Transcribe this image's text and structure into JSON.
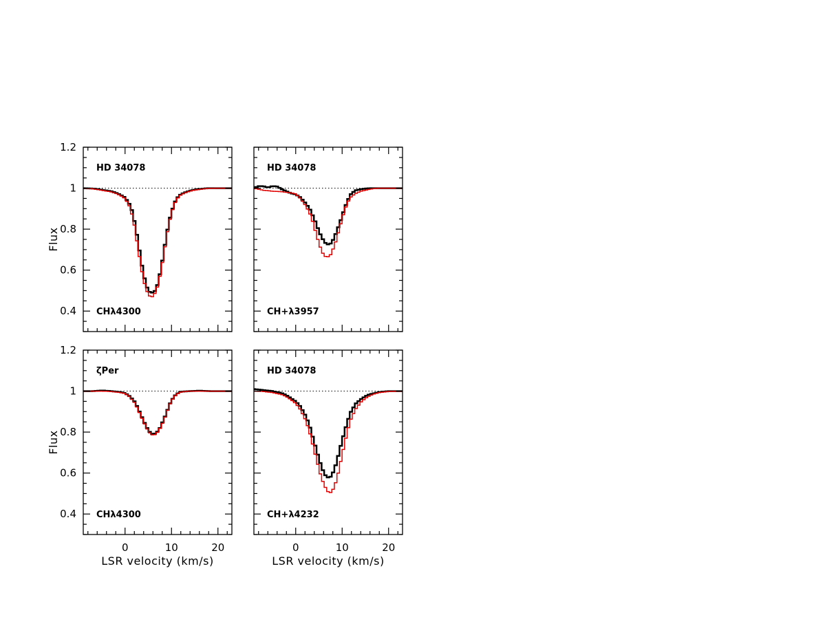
{
  "chart_data": [
    {
      "type": "line",
      "id": "p1",
      "top_label": "HD 34078",
      "bottom_label": "CHλ4300",
      "xlabel": "",
      "ylabel": "Flux",
      "xlim": [
        -9,
        23
      ],
      "ylim": [
        0.3,
        1.2
      ],
      "xticks": [
        0,
        10,
        20
      ],
      "yticks": [
        0.4,
        0.6,
        0.8,
        1,
        1.2
      ],
      "continuum": 1,
      "series": [
        {
          "color": "#000000",
          "width": 2.5,
          "x": [
            -9,
            -7,
            -5,
            -3,
            -2,
            -1,
            0,
            1,
            1.5,
            2,
            2.5,
            3,
            3.5,
            4,
            4.5,
            5,
            5.5,
            6,
            6.5,
            7,
            7.5,
            8,
            8.5,
            9,
            9.5,
            10,
            10.5,
            11,
            11.5,
            12,
            13,
            14,
            15,
            16,
            17,
            18,
            20,
            23
          ],
          "y": [
            1.0,
            0.998,
            0.992,
            0.985,
            0.978,
            0.968,
            0.955,
            0.92,
            0.89,
            0.84,
            0.78,
            0.71,
            0.64,
            0.58,
            0.53,
            0.5,
            0.49,
            0.49,
            0.5,
            0.53,
            0.58,
            0.64,
            0.71,
            0.78,
            0.84,
            0.88,
            0.92,
            0.945,
            0.96,
            0.97,
            0.98,
            0.988,
            0.993,
            0.996,
            0.998,
            1.0,
            1.0,
            1.0
          ]
        },
        {
          "color": "#e00000",
          "width": 1.5,
          "x": [
            -9,
            -7,
            -5,
            -3,
            -2,
            -1,
            0,
            1,
            1.5,
            2,
            2.5,
            3,
            3.5,
            4,
            4.5,
            5,
            5.5,
            6,
            6.5,
            7,
            7.5,
            8,
            8.5,
            9,
            9.5,
            10,
            10.5,
            11,
            11.5,
            12,
            13,
            14,
            15,
            16,
            17,
            18,
            20,
            23
          ],
          "y": [
            1.0,
            0.997,
            0.99,
            0.982,
            0.975,
            0.965,
            0.95,
            0.91,
            0.87,
            0.82,
            0.75,
            0.68,
            0.61,
            0.55,
            0.51,
            0.48,
            0.47,
            0.47,
            0.49,
            0.52,
            0.57,
            0.63,
            0.7,
            0.77,
            0.83,
            0.875,
            0.915,
            0.94,
            0.958,
            0.968,
            0.978,
            0.986,
            0.991,
            0.994,
            0.997,
            0.999,
            1.0,
            1.0
          ]
        }
      ]
    },
    {
      "type": "line",
      "id": "p2",
      "top_label": "HD 34078",
      "bottom_label": "CH+λ3957",
      "xlabel": "",
      "ylabel": "",
      "xlim": [
        -9,
        23
      ],
      "ylim": [
        0.3,
        1.2
      ],
      "xticks": [
        0,
        10,
        20
      ],
      "yticks": [
        0.4,
        0.6,
        0.8,
        1,
        1.2
      ],
      "continuum": 1,
      "series": [
        {
          "color": "#000000",
          "width": 2.5,
          "x": [
            -9,
            -8,
            -7,
            -6,
            -5,
            -4,
            -3,
            -2,
            -1,
            0,
            1,
            2,
            3,
            3.5,
            4,
            4.5,
            5,
            5.5,
            6,
            6.5,
            7,
            7.5,
            8,
            8.5,
            9,
            9.5,
            10,
            10.5,
            11,
            11.5,
            12,
            13,
            14,
            15,
            16,
            17,
            18,
            20,
            23
          ],
          "y": [
            1.0,
            1.01,
            1.01,
            1.003,
            1.01,
            1.008,
            0.995,
            0.985,
            0.975,
            0.97,
            0.955,
            0.93,
            0.9,
            0.875,
            0.85,
            0.82,
            0.79,
            0.765,
            0.745,
            0.73,
            0.725,
            0.73,
            0.745,
            0.77,
            0.8,
            0.83,
            0.865,
            0.9,
            0.93,
            0.955,
            0.975,
            0.99,
            0.995,
            0.998,
            1.0,
            1.0,
            1.0,
            1.0,
            1.0
          ]
        },
        {
          "color": "#e00000",
          "width": 1.5,
          "x": [
            -9,
            -8,
            -7,
            -6,
            -5,
            -4,
            -3,
            -2,
            -1,
            0,
            1,
            2,
            3,
            3.5,
            4,
            4.5,
            5,
            5.5,
            6,
            6.5,
            7,
            7.5,
            8,
            8.5,
            9,
            9.5,
            10,
            10.5,
            11,
            11.5,
            12,
            13,
            14,
            15,
            16,
            17,
            18,
            20,
            23
          ],
          "y": [
            1.0,
            0.995,
            0.99,
            0.988,
            0.985,
            0.984,
            0.983,
            0.98,
            0.977,
            0.972,
            0.95,
            0.92,
            0.88,
            0.85,
            0.81,
            0.77,
            0.73,
            0.7,
            0.675,
            0.665,
            0.665,
            0.675,
            0.7,
            0.73,
            0.77,
            0.81,
            0.85,
            0.89,
            0.92,
            0.945,
            0.96,
            0.975,
            0.985,
            0.99,
            0.995,
            0.998,
            1.0,
            1.0,
            1.0
          ]
        }
      ]
    },
    {
      "type": "line",
      "id": "p3",
      "top_label": "ζPer",
      "bottom_label": "CHλ4300",
      "xlabel": "LSR velocity (km/s)",
      "ylabel": "Flux",
      "xlim": [
        -9,
        23
      ],
      "ylim": [
        0.3,
        1.2
      ],
      "xticks": [
        0,
        10,
        20
      ],
      "yticks": [
        0.4,
        0.6,
        0.8,
        1,
        1.2
      ],
      "continuum": 1,
      "series": [
        {
          "color": "#000000",
          "width": 2.5,
          "x": [
            -9,
            -7,
            -5,
            -3,
            -1,
            0,
            1,
            2,
            2.5,
            3,
            3.5,
            4,
            4.5,
            5,
            5.5,
            6,
            6.5,
            7,
            7.5,
            8,
            8.5,
            9,
            9.5,
            10,
            11,
            12,
            14,
            16,
            18,
            20,
            23
          ],
          "y": [
            1.0,
            1.0,
            1.003,
            1.0,
            0.995,
            0.99,
            0.975,
            0.95,
            0.93,
            0.905,
            0.88,
            0.855,
            0.83,
            0.81,
            0.795,
            0.79,
            0.793,
            0.803,
            0.82,
            0.845,
            0.87,
            0.9,
            0.93,
            0.955,
            0.985,
            0.997,
            1.0,
            1.002,
            1.0,
            1.0,
            1.0
          ]
        },
        {
          "color": "#e00000",
          "width": 1.5,
          "x": [
            -9,
            -7,
            -5,
            -3,
            -1,
            0,
            1,
            2,
            2.5,
            3,
            3.5,
            4,
            4.5,
            5,
            5.5,
            6,
            6.5,
            7,
            7.5,
            8,
            8.5,
            9,
            9.5,
            10,
            11,
            12,
            14,
            16,
            18,
            20,
            23
          ],
          "y": [
            1.0,
            1.0,
            1.0,
            0.998,
            0.993,
            0.988,
            0.972,
            0.945,
            0.925,
            0.9,
            0.875,
            0.85,
            0.825,
            0.805,
            0.79,
            0.785,
            0.788,
            0.8,
            0.818,
            0.84,
            0.867,
            0.897,
            0.928,
            0.953,
            0.983,
            0.996,
            1.0,
            1.0,
            1.0,
            1.0,
            1.0
          ]
        }
      ]
    },
    {
      "type": "line",
      "id": "p4",
      "top_label": "HD 34078",
      "bottom_label": "CH+λ4232",
      "xlabel": "LSR velocity (km/s)",
      "ylabel": "",
      "xlim": [
        -9,
        23
      ],
      "ylim": [
        0.3,
        1.2
      ],
      "xticks": [
        0,
        10,
        20
      ],
      "yticks": [
        0.4,
        0.6,
        0.8,
        1,
        1.2
      ],
      "continuum": 1,
      "series": [
        {
          "color": "#000000",
          "width": 2.5,
          "x": [
            -9,
            -7,
            -5,
            -3,
            -2,
            -1,
            0,
            1,
            2,
            2.5,
            3,
            3.5,
            4,
            4.5,
            5,
            5.5,
            6,
            6.5,
            7,
            7.5,
            8,
            8.5,
            9,
            9.5,
            10,
            10.5,
            11,
            11.5,
            12,
            13,
            14,
            15,
            16,
            17,
            18,
            20,
            23
          ],
          "y": [
            1.01,
            1.005,
            1.0,
            0.99,
            0.98,
            0.965,
            0.95,
            0.925,
            0.885,
            0.86,
            0.83,
            0.79,
            0.75,
            0.71,
            0.67,
            0.635,
            0.605,
            0.585,
            0.578,
            0.582,
            0.6,
            0.63,
            0.67,
            0.715,
            0.76,
            0.8,
            0.84,
            0.875,
            0.905,
            0.94,
            0.96,
            0.975,
            0.985,
            0.99,
            0.995,
            1.0,
            1.0
          ]
        },
        {
          "color": "#e00000",
          "width": 1.5,
          "x": [
            -9,
            -7,
            -5,
            -3,
            -2,
            -1,
            0,
            1,
            2,
            2.5,
            3,
            3.5,
            4,
            4.5,
            5,
            5.5,
            6,
            6.5,
            7,
            7.5,
            8,
            8.5,
            9,
            9.5,
            10,
            10.5,
            11,
            11.5,
            12,
            13,
            14,
            15,
            16,
            17,
            18,
            20,
            23
          ],
          "y": [
            1.0,
            0.998,
            0.993,
            0.983,
            0.973,
            0.958,
            0.94,
            0.91,
            0.865,
            0.835,
            0.8,
            0.755,
            0.71,
            0.665,
            0.62,
            0.58,
            0.55,
            0.525,
            0.508,
            0.505,
            0.518,
            0.545,
            0.585,
            0.635,
            0.69,
            0.74,
            0.79,
            0.835,
            0.87,
            0.915,
            0.945,
            0.965,
            0.978,
            0.987,
            0.993,
            0.998,
            1.0
          ]
        }
      ]
    }
  ]
}
